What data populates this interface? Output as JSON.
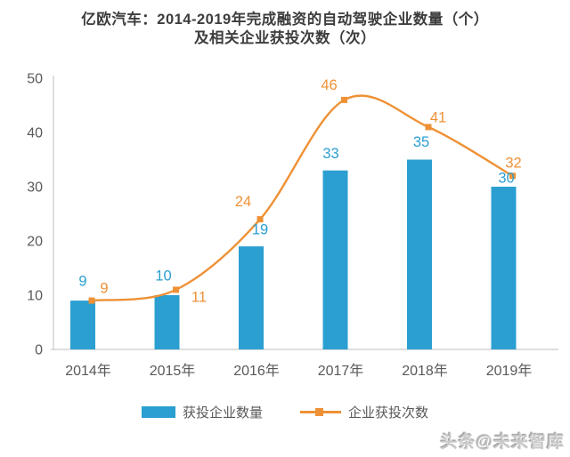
{
  "chart": {
    "title_line1": "亿欧汽车：2014-2019年完成融资的自动驾驶企业数量（个）",
    "title_line2": "及相关企业获投次数（次）"
  },
  "chart_data": {
    "type": "combo",
    "title": "亿欧汽车：2014-2019年完成融资的自动驾驶企业数量（个）及相关企业获投次数（次）",
    "categories": [
      "2014年",
      "2015年",
      "2016年",
      "2017年",
      "2018年",
      "2019年"
    ],
    "series": [
      {
        "name": "获投企业数量",
        "type": "bar",
        "color": "#2b9fd1",
        "values": [
          9,
          10,
          19,
          33,
          35,
          30
        ]
      },
      {
        "name": "企业获投次数",
        "type": "line",
        "color": "#ee9136",
        "values": [
          9,
          11,
          24,
          46,
          41,
          32
        ]
      }
    ],
    "xlabel": "",
    "ylabel": "",
    "ylim": [
      0,
      50
    ],
    "yticks": [
      0,
      10,
      20,
      30,
      40,
      50
    ],
    "grid": false,
    "legend_position": "bottom",
    "data_labels": true
  },
  "colors": {
    "bar": "#2b9fd1",
    "line": "#ee9136",
    "axis_line": "#c9c9c9",
    "axis_text": "#595959",
    "title_text": "#3d3d3d"
  },
  "watermark": "头条@未来智库"
}
